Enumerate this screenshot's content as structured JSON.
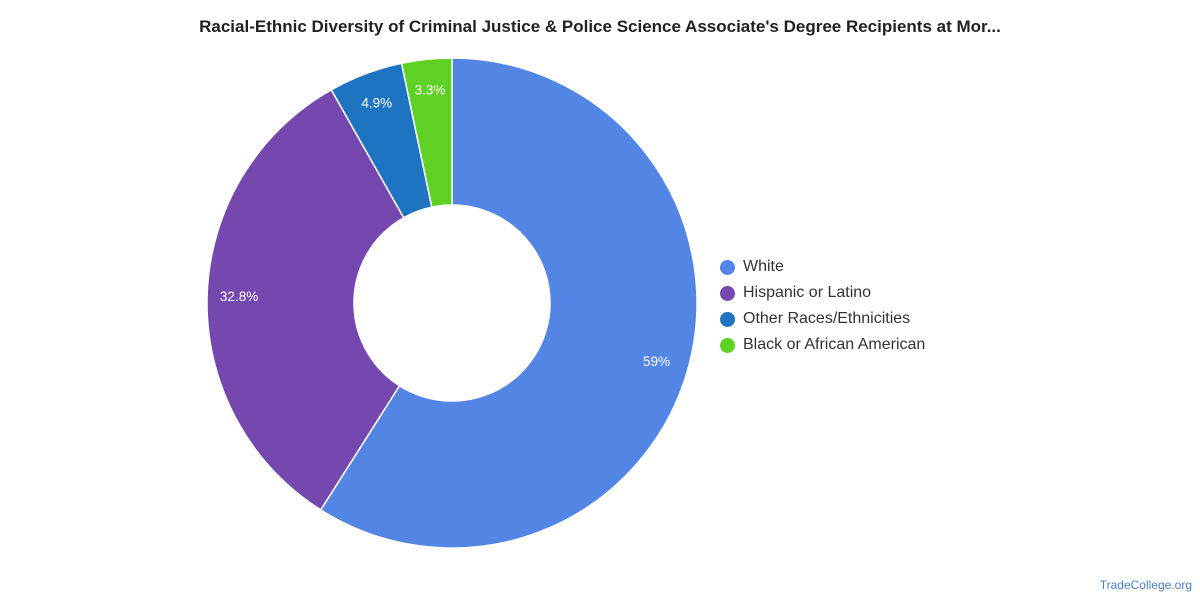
{
  "chart_data": {
    "type": "pie",
    "title": "Racial-Ethnic Diversity of Criminal Justice & Police Science Associate's Degree Recipients at Mor...",
    "categories": [
      "White",
      "Hispanic or Latino",
      "Other Races/Ethnicities",
      "Black or African American"
    ],
    "values": [
      59,
      32.8,
      4.9,
      3.3
    ],
    "value_labels": [
      "59%",
      "32.8%",
      "4.9%",
      "3.3%"
    ],
    "colors": [
      "#5386e4",
      "#7548b0",
      "#1f74c1",
      "#5fd125"
    ],
    "donut": true,
    "legend_position": "right"
  },
  "footer": {
    "source": "TradeCollege.org"
  }
}
